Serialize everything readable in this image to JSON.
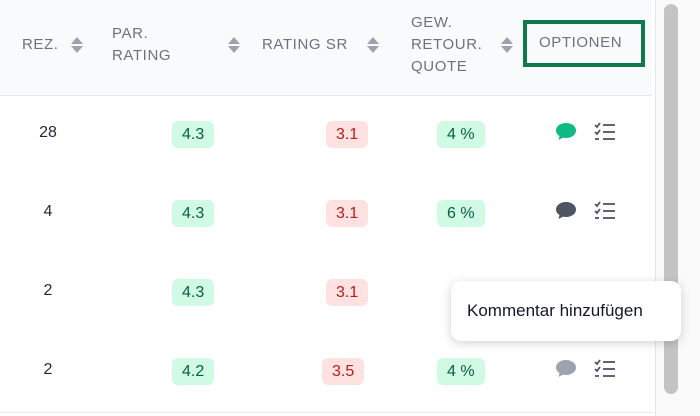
{
  "header": {
    "rez": "REZ.",
    "par_rating": "PAR.\nRATING",
    "rating_sr": "RATING SR",
    "gew_retour": "GEW.\nRETOUR.\nQUOTE",
    "optionen": "OPTIONEN"
  },
  "rows": [
    {
      "rez": "28",
      "par_rating": "4.3",
      "rating_sr": "3.1",
      "retour": "4 %",
      "comment_state": "active"
    },
    {
      "rez": "4",
      "par_rating": "4.3",
      "rating_sr": "3.1",
      "retour": "6 %",
      "comment_state": "existing"
    },
    {
      "rez": "2",
      "par_rating": "4.3",
      "rating_sr": "3.1",
      "retour": "",
      "comment_state": "none"
    },
    {
      "rez": "2",
      "par_rating": "4.2",
      "rating_sr": "3.5",
      "retour": "4 %",
      "comment_state": "empty"
    }
  ],
  "tooltip": {
    "text": "Kommentar hinzufügen"
  },
  "icons": {
    "comment": "comment-icon",
    "checklist": "checklist-icon",
    "sort": "sort-icon"
  },
  "colors": {
    "green_pill_bg": "#d1fae5",
    "green_pill_text": "#065f46",
    "red_pill_bg": "#fee2e2",
    "red_pill_text": "#b91c1c",
    "comment_active": "#10b981",
    "comment_existing": "#4b5563",
    "comment_empty": "#9ca3af",
    "highlight_border": "#0e7a4a"
  }
}
